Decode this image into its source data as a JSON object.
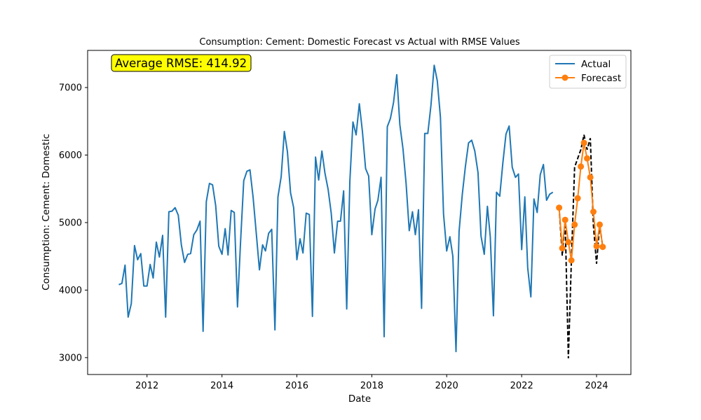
{
  "chart_data": {
    "type": "line",
    "title": "Consumption: Cement: Domestic Forecast vs Actual with RMSE Values",
    "xlabel": "Date",
    "ylabel": "Consumption: Cement: Domestic",
    "xlim": [
      "2010-06-01",
      "2024-12-01"
    ],
    "ylim": [
      2750,
      7550
    ],
    "x_ticks": [
      {
        "label": "2012",
        "date": "2012-01-01"
      },
      {
        "label": "2014",
        "date": "2014-01-01"
      },
      {
        "label": "2016",
        "date": "2016-01-01"
      },
      {
        "label": "2018",
        "date": "2018-01-01"
      },
      {
        "label": "2020",
        "date": "2020-01-01"
      },
      {
        "label": "2022",
        "date": "2022-01-01"
      },
      {
        "label": "2024",
        "date": "2024-01-01"
      }
    ],
    "y_ticks": [
      3000,
      4000,
      5000,
      6000,
      7000
    ],
    "grid": false,
    "legend_placement": "top-right",
    "annotation": {
      "text": "Average RMSE: 414.92",
      "color": "#ffff00"
    },
    "colors": {
      "actual": "#1f77b4",
      "forecast": "#ff7f0e",
      "connector": "#000000"
    },
    "actual": {
      "name": "Actual",
      "start": "2011-04-01",
      "frequency": "monthly",
      "values": [
        4080,
        4100,
        4370,
        3600,
        3800,
        4660,
        4450,
        4540,
        4060,
        4060,
        4380,
        4180,
        4710,
        4490,
        4810,
        3600,
        5160,
        5170,
        5220,
        5110,
        4670,
        4410,
        4530,
        4540,
        4820,
        4890,
        5020,
        3390,
        5310,
        5580,
        5560,
        5250,
        4650,
        4530,
        4910,
        4520,
        5180,
        5150,
        3750,
        4700,
        5620,
        5760,
        5780,
        5370,
        4850,
        4300,
        4670,
        4580,
        4840,
        4900,
        3410,
        5380,
        5680,
        6350,
        6050,
        5440,
        5220,
        4450,
        4760,
        4550,
        5140,
        5120,
        3610,
        5970,
        5630,
        6060,
        5730,
        5490,
        5140,
        4550,
        5020,
        5020,
        5470,
        3720,
        5620,
        6490,
        6300,
        6760,
        6350,
        5800,
        5690,
        4820,
        5200,
        5330,
        5670,
        3310,
        6420,
        6540,
        6780,
        7190,
        6450,
        6090,
        5580,
        4880,
        5160,
        4820,
        5190,
        3730,
        6320,
        6320,
        6740,
        7330,
        7100,
        6560,
        5130,
        4580,
        4790,
        4500,
        3090,
        4870,
        5420,
        5830,
        6180,
        6220,
        6060,
        5740,
        4800,
        4530,
        5240,
        4790,
        3620,
        5450,
        5390,
        5880,
        6310,
        6430,
        5820,
        5670,
        5720,
        4600,
        5380,
        4330,
        3900,
        5350,
        5150,
        5710,
        5860,
        5330,
        5420,
        5450
      ]
    },
    "forecast": {
      "name": "Forecast",
      "start": "2023-01-01",
      "frequency": "monthly",
      "values": [
        5220,
        4620,
        5040,
        4710,
        4440,
        4970,
        5360,
        5830,
        6180,
        5950,
        5670,
        5160,
        4650,
        4970,
        4640
      ]
    },
    "forecast_period_actual": {
      "start": "2023-01-01",
      "frequency": "monthly",
      "values": [
        5220,
        4510,
        5040,
        2990,
        4440,
        5820,
        5950,
        6080,
        6300,
        6080,
        6250,
        4960,
        4390,
        4970,
        4640
      ]
    }
  }
}
